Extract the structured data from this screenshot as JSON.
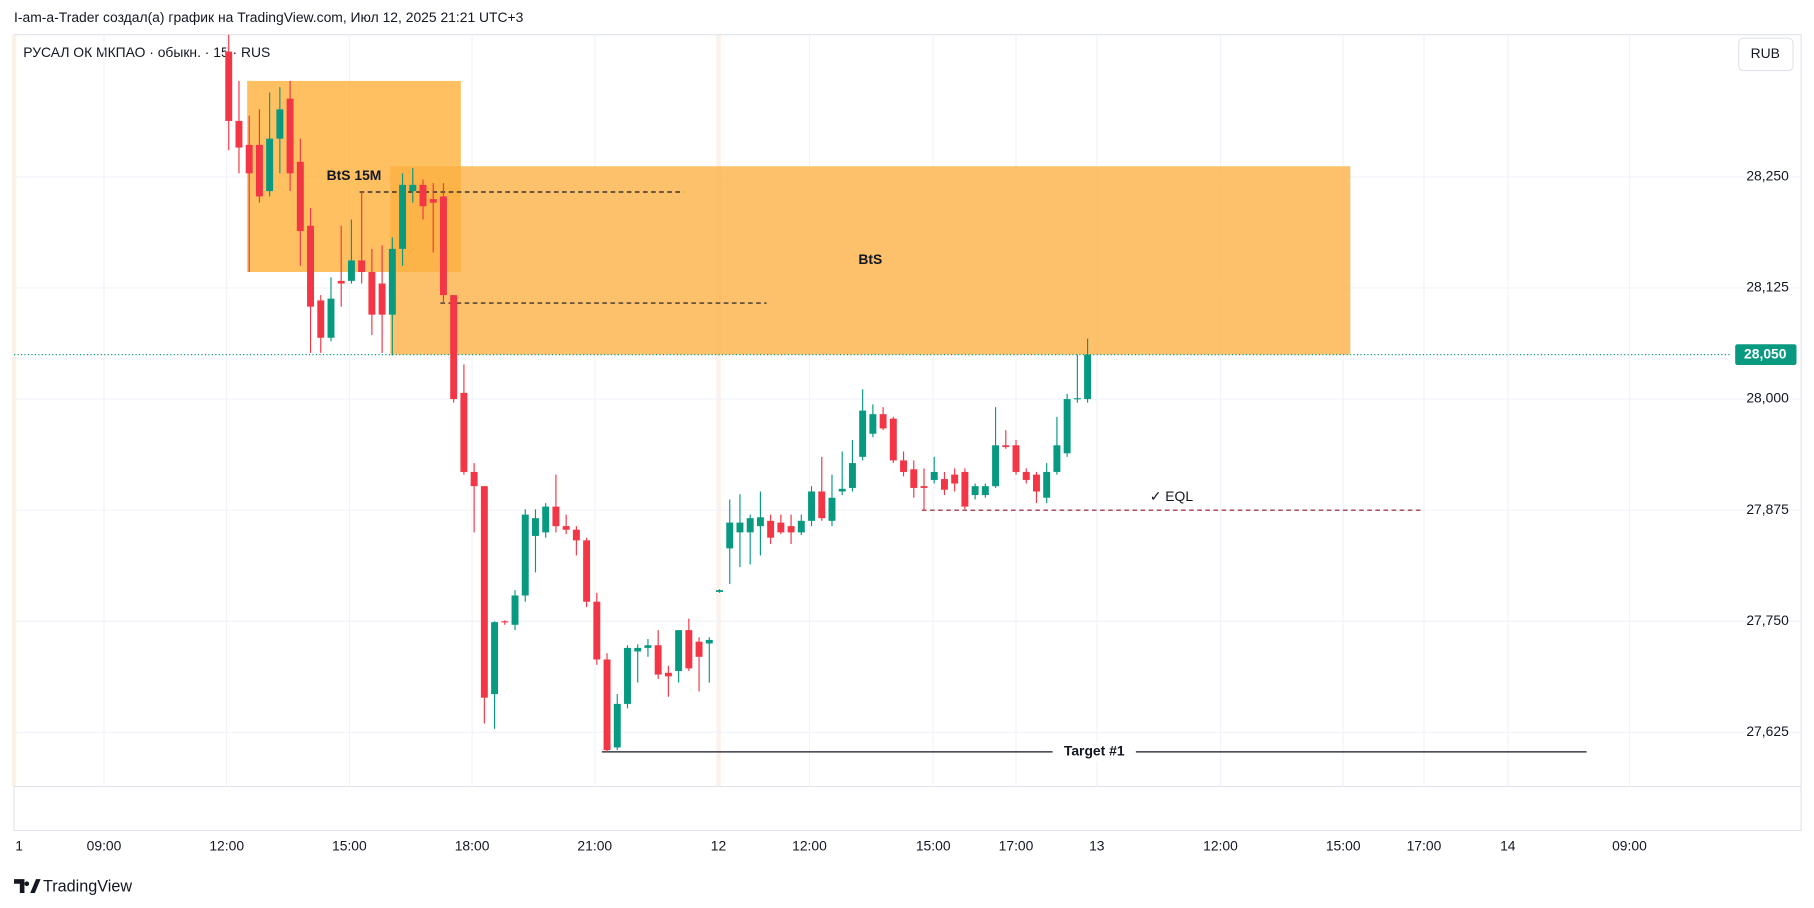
{
  "header": {
    "attribution": "I-am-a-Trader создал(а) график на TradingView.com, Июл 12, 2025 21:21 UTC+3",
    "symbol": "РУСАЛ ОК МКПАО · обыкн. · 15 · RUS",
    "currency": "RUB"
  },
  "footer": {
    "brand": "TradingView"
  },
  "chart_data": {
    "type": "candlestick",
    "up_color": "#089981",
    "down_color": "#f23645",
    "x": [
      21,
      22,
      23,
      24,
      25,
      26,
      27,
      28,
      29,
      30,
      31,
      32,
      33,
      34,
      35,
      36,
      37,
      38,
      39,
      40,
      41,
      42,
      43,
      44,
      45,
      46,
      47,
      48,
      49,
      50,
      51,
      52,
      53,
      54,
      55,
      56,
      57,
      58,
      59,
      60,
      61,
      62,
      63,
      64,
      65,
      66,
      67,
      68,
      69,
      70,
      71,
      72,
      73,
      74,
      75,
      76,
      77,
      78,
      79,
      80,
      81,
      82,
      83,
      84,
      85,
      86,
      87,
      88,
      89,
      90,
      91,
      92,
      93,
      94,
      95,
      96,
      97,
      98,
      99,
      100,
      101,
      102,
      103,
      104,
      105
    ],
    "open": [
      28391,
      28313,
      28286,
      28286,
      28234,
      28293,
      28338,
      28267,
      28195,
      28111,
      28069,
      28133,
      28133,
      28156,
      28143,
      28130,
      28095,
      28169,
      28234,
      28241,
      28225,
      28228,
      28117,
      28007,
      27918,
      27902,
      27668,
      27750,
      27746,
      27779,
      27846,
      27850,
      27879,
      27857,
      27853,
      27841,
      27772,
      27707,
      27608,
      27657,
      27716,
      27720,
      27723,
      27692,
      27694,
      27740,
      27727,
      27725,
      27783,
      27832,
      27850,
      27850,
      27857,
      27863,
      27861,
      27857,
      27850,
      27863,
      27896,
      27863,
      27896,
      27900,
      27935,
      27961,
      27983,
      27978,
      27931,
      27921,
      27902,
      27909,
      27910,
      27915,
      27918,
      27892,
      27892,
      27902,
      27948,
      27948,
      27918,
      27915,
      27889,
      27918,
      27939,
      28000,
      28000
    ],
    "high": [
      28410,
      28358,
      28319,
      28326,
      28345,
      28351,
      28358,
      28293,
      28215,
      28117,
      28137,
      28195,
      28202,
      28234,
      28169,
      28173,
      28182,
      28254,
      28260,
      28247,
      28243,
      28243,
      28117,
      28039,
      27928,
      27902,
      27750,
      27751,
      27785,
      27876,
      27876,
      27883,
      27915,
      27870,
      27857,
      27844,
      27782,
      27714,
      27668,
      27723,
      27724,
      27730,
      27740,
      27700,
      27740,
      27753,
      27732,
      27732,
      27786,
      27887,
      27893,
      27870,
      27896,
      27870,
      27870,
      27870,
      27870,
      27902,
      27935,
      27915,
      27941,
      27954,
      28011,
      27994,
      27991,
      27980,
      27941,
      27931,
      27922,
      27935,
      27918,
      27922,
      27922,
      27905,
      27905,
      27991,
      27965,
      27954,
      27922,
      27918,
      27928,
      27980,
      28006,
      28050,
      28068
    ],
    "low": [
      28280,
      28254,
      28143,
      28221,
      28228,
      28254,
      28234,
      28150,
      28052,
      28052,
      28065,
      28104,
      28130,
      28130,
      28072,
      28052,
      28049,
      28150,
      28221,
      28202,
      28165,
      28108,
      27996,
      27915,
      27850,
      27635,
      27629,
      27746,
      27740,
      27772,
      27805,
      27844,
      27850,
      27848,
      27824,
      27766,
      27701,
      27603,
      27605,
      27652,
      27681,
      27710,
      27685,
      27665,
      27681,
      27694,
      27671,
      27681,
      27782,
      27792,
      27811,
      27814,
      27824,
      27837,
      27848,
      27837,
      27847,
      27857,
      27863,
      27857,
      27892,
      27896,
      27931,
      27957,
      27965,
      27928,
      27913,
      27889,
      27874,
      27905,
      27892,
      27896,
      27876,
      27887,
      27889,
      27900,
      27944,
      27915,
      27905,
      27883,
      27883,
      27915,
      27935,
      27996,
      27996
    ],
    "close": [
      28313,
      28283,
      28254,
      28228,
      28293,
      28326,
      28254,
      28189,
      28104,
      28069,
      28113,
      28130,
      28156,
      28143,
      28095,
      28095,
      28169,
      28241,
      28241,
      28217,
      28221,
      28117,
      28000,
      27918,
      27902,
      27664,
      27749,
      27749,
      27779,
      27870,
      27866,
      27879,
      27857,
      27853,
      27841,
      27772,
      27707,
      27605,
      27657,
      27720,
      27720,
      27723,
      27690,
      27688,
      27740,
      27697,
      27710,
      27729,
      27785,
      27861,
      27861,
      27866,
      27867,
      27844,
      27850,
      27850,
      27863,
      27896,
      27866,
      27889,
      27899,
      27928,
      27987,
      27983,
      27967,
      27931,
      27918,
      27900,
      27900,
      27918,
      27898,
      27905,
      27879,
      27902,
      27902,
      27948,
      27946,
      27918,
      27909,
      27896,
      27918,
      27948,
      28000,
      28001,
      28050
    ],
    "xlim": [
      0,
      168
    ],
    "xticks": [
      {
        "value": 0,
        "label": "1"
      },
      {
        "value": 8.8,
        "label": "09:00"
      },
      {
        "value": 20.8,
        "label": "12:00"
      },
      {
        "value": 32.8,
        "label": "15:00"
      },
      {
        "value": 44.8,
        "label": "18:00"
      },
      {
        "value": 56.8,
        "label": "21:00"
      },
      {
        "value": 68.9,
        "label": "12"
      },
      {
        "value": 77.8,
        "label": "12:00"
      },
      {
        "value": 89.9,
        "label": "15:00"
      },
      {
        "value": 98,
        "label": "17:00"
      },
      {
        "value": 105.9,
        "label": "13"
      },
      {
        "value": 118,
        "label": "12:00"
      },
      {
        "value": 130,
        "label": "15:00"
      },
      {
        "value": 137.9,
        "label": "17:00"
      },
      {
        "value": 146.1,
        "label": "14"
      },
      {
        "value": 158,
        "label": "09:00"
      }
    ],
    "ylim": [
      27564,
      28410
    ],
    "yticks": [
      {
        "value": 27625,
        "label": "27,625"
      },
      {
        "value": 27750,
        "label": "27,750"
      },
      {
        "value": 27875,
        "label": "27,875"
      },
      {
        "value": 28000,
        "label": "28,000"
      },
      {
        "value": 28125,
        "label": "28,125"
      },
      {
        "value": 28250,
        "label": "28,250"
      }
    ],
    "grid": true,
    "session_breaks": [
      0,
      68.9
    ],
    "last_price": {
      "value": 28050,
      "label": "28,050"
    },
    "zones": [
      {
        "label": "BtS 15M",
        "x": [
          22.8,
          43.7
        ],
        "y": [
          28143,
          28358
        ],
        "color": "rgba(255,167,38,0.72)"
      },
      {
        "label": "BtS",
        "x": [
          36.8,
          130.7
        ],
        "y": [
          28050,
          28262
        ],
        "color": "rgba(251,176,64,0.78)"
      }
    ],
    "levels": [
      {
        "price": 28233,
        "x": [
          33.8,
          65.5
        ],
        "color": "#131722"
      },
      {
        "price": 28108,
        "x": [
          41.7,
          73.6
        ],
        "color": "#131722"
      },
      {
        "price": 27875,
        "x": [
          88.8,
          137.6
        ],
        "color": "#8b1a2b",
        "label": "✓ EQL"
      }
    ],
    "target": {
      "label": "Target #1",
      "price": 27603,
      "x": [
        57.5,
        153.8
      ],
      "color": "#131722"
    }
  }
}
